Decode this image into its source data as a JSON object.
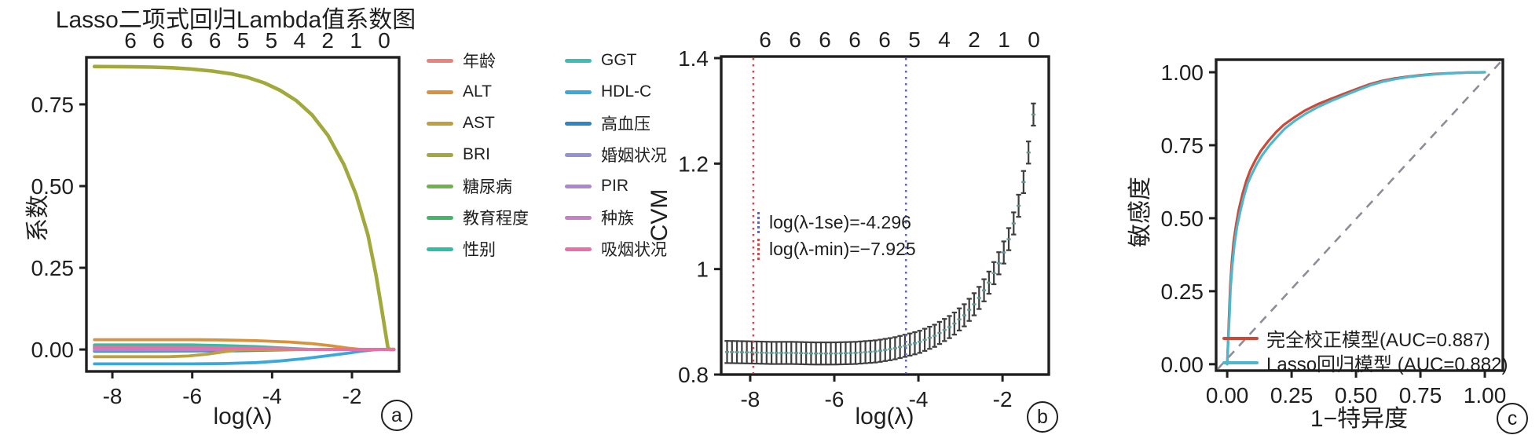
{
  "figure": {
    "panel_labels": {
      "a": "a",
      "b": "b",
      "c": "c"
    }
  },
  "chart_data": [
    {
      "id": "a",
      "type": "line",
      "title": "Lasso二项式回归Lambda值系数图",
      "xlabel": "log(λ)",
      "ylabel": "系数",
      "top_axis_labels": [
        "6",
        "6",
        "6",
        "6",
        "5",
        "5",
        "4",
        "2",
        "1",
        "0"
      ],
      "x_tick_labels": [
        "-8",
        "-6",
        "-4",
        "-2"
      ],
      "x_tick_values": [
        -8,
        -6,
        -4,
        -2
      ],
      "y_tick_labels": [
        "0.00",
        "0.25",
        "0.50",
        "0.75"
      ],
      "y_tick_values": [
        0,
        0.25,
        0.5,
        0.75
      ],
      "x_range": [
        -8.65,
        -0.82
      ],
      "y_range": [
        -0.067,
        0.894
      ],
      "series": [
        {
          "name": "年龄",
          "color": "#e8837e",
          "points": [
            [
              -8.45,
              0.004
            ],
            [
              -5,
              0.004
            ],
            [
              -3.8,
              0.002
            ],
            [
              -3.2,
              0
            ],
            [
              -0.95,
              0
            ]
          ]
        },
        {
          "name": "ALT",
          "color": "#d9923c",
          "points": [
            [
              -8.45,
              0.03
            ],
            [
              -6,
              0.03
            ],
            [
              -5.2,
              0.029
            ],
            [
              -4.4,
              0.027
            ],
            [
              -3.6,
              0.023
            ],
            [
              -3.0,
              0.018
            ],
            [
              -2.5,
              0.011
            ],
            [
              -2.1,
              0.004
            ],
            [
              -1.85,
              0.001
            ],
            [
              -1.6,
              0
            ],
            [
              -0.95,
              0
            ]
          ]
        },
        {
          "name": "AST",
          "color": "#bfa03f",
          "points": [
            [
              -8.45,
              -0.022
            ],
            [
              -6.6,
              -0.022
            ],
            [
              -6.1,
              -0.02
            ],
            [
              -5.6,
              -0.014
            ],
            [
              -5.2,
              -0.007
            ],
            [
              -4.9,
              -0.002
            ],
            [
              -4.7,
              0
            ],
            [
              -0.95,
              0
            ]
          ]
        },
        {
          "name": "BRI",
          "color": "#a2a93c",
          "points": [
            [
              -8.45,
              0.866
            ],
            [
              -7.5,
              0.865
            ],
            [
              -7,
              0.864
            ],
            [
              -6.5,
              0.862
            ],
            [
              -6,
              0.858
            ],
            [
              -5.5,
              0.852
            ],
            [
              -5,
              0.843
            ],
            [
              -4.6,
              0.832
            ],
            [
              -4.2,
              0.816
            ],
            [
              -3.8,
              0.793
            ],
            [
              -3.4,
              0.762
            ],
            [
              -3.0,
              0.718
            ],
            [
              -2.6,
              0.655
            ],
            [
              -2.2,
              0.565
            ],
            [
              -1.9,
              0.475
            ],
            [
              -1.6,
              0.35
            ],
            [
              -1.4,
              0.23
            ],
            [
              -1.25,
              0.12
            ],
            [
              -1.1,
              0.005
            ],
            [
              -1.05,
              0
            ],
            [
              -0.95,
              0
            ]
          ]
        },
        {
          "name": "糖尿病",
          "color": "#6cb54d",
          "points": [
            [
              -8.45,
              0.011
            ],
            [
              -5.5,
              0.01
            ],
            [
              -4.4,
              0.006
            ],
            [
              -3.7,
              0.002
            ],
            [
              -3.3,
              0
            ],
            [
              -0.95,
              0
            ]
          ]
        },
        {
          "name": "教育程度",
          "color": "#45b56a",
          "points": [
            [
              -8.45,
              0.008
            ],
            [
              -5,
              0.007
            ],
            [
              -4,
              0.003
            ],
            [
              -3.4,
              0
            ],
            [
              -0.95,
              0
            ]
          ]
        },
        {
          "name": "性别",
          "color": "#2fbfa4",
          "points": [
            [
              -8.45,
              0.014
            ],
            [
              -6,
              0.014
            ],
            [
              -5.2,
              0.012
            ],
            [
              -4.4,
              0.009
            ],
            [
              -3.8,
              0.005
            ],
            [
              -3.3,
              0.002
            ],
            [
              -3.0,
              0
            ],
            [
              -0.95,
              0
            ]
          ]
        },
        {
          "name": "GGT",
          "color": "#3dbdb8",
          "points": [
            [
              -8.45,
              0.006
            ],
            [
              -5,
              0.005
            ],
            [
              -4.1,
              0.002
            ],
            [
              -3.5,
              0
            ],
            [
              -0.95,
              0
            ]
          ]
        },
        {
          "name": "HDL-C",
          "color": "#3aa8d8",
          "points": [
            [
              -8.45,
              -0.044
            ],
            [
              -6,
              -0.044
            ],
            [
              -5.2,
              -0.043
            ],
            [
              -4.4,
              -0.04
            ],
            [
              -3.8,
              -0.035
            ],
            [
              -3.2,
              -0.028
            ],
            [
              -2.6,
              -0.019
            ],
            [
              -2.1,
              -0.011
            ],
            [
              -1.7,
              -0.004
            ],
            [
              -1.45,
              -0.001
            ],
            [
              -1.3,
              0
            ],
            [
              -0.95,
              0
            ]
          ]
        },
        {
          "name": "高血压",
          "color": "#2f86c4",
          "points": [
            [
              -8.45,
              -0.005
            ],
            [
              -5,
              -0.004
            ],
            [
              -4,
              -0.002
            ],
            [
              -3.3,
              0
            ],
            [
              -0.95,
              0
            ]
          ]
        },
        {
          "name": "婚姻状况",
          "color": "#9691d4",
          "points": [
            [
              -8.45,
              0.002
            ],
            [
              -4.5,
              0.001
            ],
            [
              -3.5,
              0
            ],
            [
              -0.95,
              0
            ]
          ]
        },
        {
          "name": "PIR",
          "color": "#af85cf",
          "points": [
            [
              -8.45,
              -0.002
            ],
            [
              -4.5,
              -0.001
            ],
            [
              -3.5,
              0
            ],
            [
              -0.95,
              0
            ]
          ]
        },
        {
          "name": "种族",
          "color": "#c97fc5",
          "points": [
            [
              -8.45,
              0.005
            ],
            [
              -5.5,
              0.004
            ],
            [
              -4.2,
              0.002
            ],
            [
              -3.4,
              0
            ],
            [
              -0.95,
              0
            ]
          ]
        },
        {
          "name": "吸烟状况",
          "color": "#e86fa8",
          "points": [
            [
              -8.45,
              0.007
            ],
            [
              -5.5,
              0.006
            ],
            [
              -4.3,
              0.003
            ],
            [
              -3.3,
              0.001
            ],
            [
              -2.8,
              0
            ],
            [
              -0.95,
              0
            ]
          ]
        }
      ],
      "draw_order": [
        0,
        4,
        5,
        7,
        9,
        10,
        11,
        12,
        2,
        1,
        6,
        8,
        3,
        13
      ]
    },
    {
      "id": "b",
      "type": "errorbar",
      "xlabel": "log(λ)",
      "ylabel": "CVM",
      "top_axis_labels": [
        "6",
        "6",
        "6",
        "6",
        "6",
        "5",
        "4",
        "2",
        "1",
        "0"
      ],
      "x_tick_labels": [
        "-8",
        "-6",
        "-4",
        "-2"
      ],
      "x_tick_values": [
        -8,
        -6,
        -4,
        -2
      ],
      "y_tick_labels": [
        "0.8",
        "1",
        "1.2",
        "1.4"
      ],
      "y_tick_values": [
        0.8,
        1,
        1.2,
        1.4
      ],
      "x_range": [
        -8.69,
        -0.9
      ],
      "y_range": [
        0.8,
        1.403
      ],
      "cvm_mean_anchors": [
        [
          -8.69,
          0.843
        ],
        [
          -8,
          0.842
        ],
        [
          -7.5,
          0.841
        ],
        [
          -7,
          0.841
        ],
        [
          -6.5,
          0.84
        ],
        [
          -6,
          0.84
        ],
        [
          -5.5,
          0.841
        ],
        [
          -5,
          0.844
        ],
        [
          -4.6,
          0.849
        ],
        [
          -4.296,
          0.855
        ],
        [
          -4,
          0.861
        ],
        [
          -3.6,
          0.874
        ],
        [
          -3.2,
          0.893
        ],
        [
          -2.9,
          0.913
        ],
        [
          -2.6,
          0.94
        ],
        [
          -2.3,
          0.977
        ],
        [
          -2.0,
          1.025
        ],
        [
          -1.8,
          1.068
        ],
        [
          -1.6,
          1.125
        ],
        [
          -1.45,
          1.185
        ],
        [
          -1.3,
          1.265
        ],
        [
          -1.2,
          1.345
        ],
        [
          -1.1,
          1.4
        ]
      ],
      "bars": {
        "start": -8.55,
        "end": -1.21,
        "step": 0.1175,
        "se": 0.021
      },
      "vlines": [
        {
          "x": -7.925,
          "color": "#c0504d",
          "label": "log(λ-min)=−7.925"
        },
        {
          "x": -4.296,
          "color": "#6065b0",
          "label": "log(λ-1se)=-4.296"
        }
      ]
    },
    {
      "id": "c",
      "type": "roc",
      "xlabel": "1−特异度",
      "ylabel": "敏感度",
      "x_tick_labels": [
        "0.00",
        "0.25",
        "0.50",
        "0.75",
        "1.00"
      ],
      "x_tick_values": [
        0,
        0.25,
        0.5,
        0.75,
        1
      ],
      "y_tick_labels": [
        "0.00",
        "0.25",
        "0.50",
        "0.75",
        "1.00"
      ],
      "y_tick_values": [
        0,
        0.25,
        0.5,
        0.75,
        1
      ],
      "x_range": [
        -0.043,
        1.07
      ],
      "y_range": [
        -0.022,
        1.043
      ],
      "diagonal": true,
      "series": [
        {
          "name": "完全校正模型(AUC=0.887)",
          "auc": 0.887,
          "color": "#cc4937",
          "points": [
            [
              0,
              0
            ],
            [
              0.004,
              0.09
            ],
            [
              0.008,
              0.18
            ],
            [
              0.012,
              0.27
            ],
            [
              0.018,
              0.35
            ],
            [
              0.025,
              0.42
            ],
            [
              0.035,
              0.48
            ],
            [
              0.045,
              0.53
            ],
            [
              0.06,
              0.585
            ],
            [
              0.075,
              0.63
            ],
            [
              0.09,
              0.665
            ],
            [
              0.11,
              0.7
            ],
            [
              0.13,
              0.73
            ],
            [
              0.16,
              0.765
            ],
            [
              0.19,
              0.795
            ],
            [
              0.22,
              0.82
            ],
            [
              0.26,
              0.845
            ],
            [
              0.3,
              0.868
            ],
            [
              0.35,
              0.89
            ],
            [
              0.4,
              0.908
            ],
            [
              0.45,
              0.925
            ],
            [
              0.5,
              0.942
            ],
            [
              0.55,
              0.958
            ],
            [
              0.6,
              0.97
            ],
            [
              0.65,
              0.979
            ],
            [
              0.7,
              0.985
            ],
            [
              0.75,
              0.99
            ],
            [
              0.8,
              0.994
            ],
            [
              0.87,
              0.997
            ],
            [
              0.93,
              0.999
            ],
            [
              1,
              1
            ]
          ]
        },
        {
          "name": "Lasso回归模型 (AUC=0.882)",
          "auc": 0.882,
          "color": "#4db8cd",
          "points": [
            [
              0,
              0
            ],
            [
              0.004,
              0.08
            ],
            [
              0.009,
              0.17
            ],
            [
              0.013,
              0.26
            ],
            [
              0.02,
              0.34
            ],
            [
              0.028,
              0.41
            ],
            [
              0.038,
              0.47
            ],
            [
              0.05,
              0.52
            ],
            [
              0.065,
              0.575
            ],
            [
              0.08,
              0.62
            ],
            [
              0.095,
              0.65
            ],
            [
              0.115,
              0.685
            ],
            [
              0.135,
              0.715
            ],
            [
              0.165,
              0.75
            ],
            [
              0.195,
              0.78
            ],
            [
              0.225,
              0.808
            ],
            [
              0.265,
              0.835
            ],
            [
              0.305,
              0.858
            ],
            [
              0.355,
              0.882
            ],
            [
              0.405,
              0.902
            ],
            [
              0.455,
              0.92
            ],
            [
              0.505,
              0.938
            ],
            [
              0.555,
              0.955
            ],
            [
              0.605,
              0.968
            ],
            [
              0.655,
              0.977
            ],
            [
              0.705,
              0.984
            ],
            [
              0.755,
              0.989
            ],
            [
              0.805,
              0.993
            ],
            [
              0.875,
              0.997
            ],
            [
              0.935,
              0.999
            ],
            [
              1,
              1
            ]
          ]
        }
      ]
    }
  ]
}
